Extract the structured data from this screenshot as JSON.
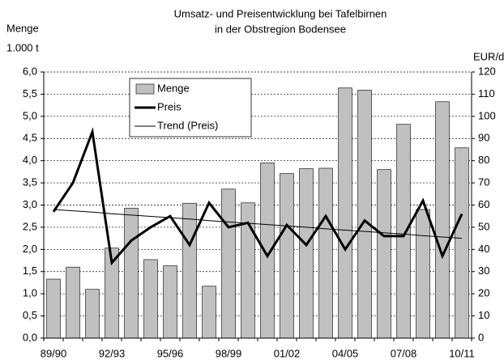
{
  "chart_data": {
    "type": "bar-line",
    "title": [
      "Umsatz- und Preisentwicklung bei Tafelbirnen",
      "in der Obstregion Bodensee"
    ],
    "y_label": [
      "Menge",
      "1.000 t"
    ],
    "y2_label": "EUR/dt",
    "categories": [
      "89/90",
      null,
      null,
      "92/93",
      null,
      null,
      "95/96",
      null,
      null,
      "98/99",
      null,
      null,
      "01/02",
      null,
      null,
      "04/05",
      null,
      null,
      "07/08",
      null,
      null,
      "10/11"
    ],
    "series": [
      {
        "name": "Menge",
        "type": "bar",
        "color": "#c0c0c0",
        "values": [
          1.33,
          1.6,
          1.1,
          2.03,
          2.93,
          1.77,
          1.63,
          3.04,
          1.17,
          3.36,
          3.05,
          3.95,
          3.71,
          3.82,
          3.83,
          5.64,
          5.59,
          3.8,
          4.82,
          2.9,
          5.33,
          4.29
        ]
      },
      {
        "name": "Preis",
        "type": "line",
        "axis": "y2",
        "color": "#000000",
        "width": 3,
        "values": [
          57,
          70,
          93,
          34,
          44,
          50,
          55,
          42,
          61,
          50,
          52,
          37,
          51,
          42,
          55,
          40,
          53,
          46,
          46,
          62,
          37,
          56
        ]
      },
      {
        "name": "Trend (Preis)",
        "type": "line",
        "axis": "y2",
        "color": "#000000",
        "width": 1,
        "values": [
          58,
          57.4,
          56.8,
          56.1,
          55.5,
          54.9,
          54.3,
          53.7,
          53.0,
          52.4,
          51.8,
          51.2,
          50.6,
          50.0,
          49.3,
          48.7,
          48.1,
          47.5,
          46.9,
          46.2,
          45.6,
          45
        ]
      }
    ],
    "ylim": [
      0,
      6
    ],
    "yticks": [
      {
        "value": 0,
        "label": "0,0"
      },
      {
        "value": 0.5,
        "label": "0,5"
      },
      {
        "value": 1,
        "label": "1,0"
      },
      {
        "value": 1.5,
        "label": "1,5"
      },
      {
        "value": 2,
        "label": "2,0"
      },
      {
        "value": 2.5,
        "label": "2,5"
      },
      {
        "value": 3,
        "label": "3,0"
      },
      {
        "value": 3.5,
        "label": "3,5"
      },
      {
        "value": 4,
        "label": "4,0"
      },
      {
        "value": 4.5,
        "label": "4,5"
      },
      {
        "value": 5,
        "label": "5,0"
      },
      {
        "value": 5.5,
        "label": "5,5"
      },
      {
        "value": 6,
        "label": "6,0"
      }
    ],
    "y2lim": [
      0,
      120
    ],
    "y2ticks": [
      0,
      10,
      20,
      30,
      40,
      50,
      60,
      70,
      80,
      90,
      100,
      110,
      120
    ],
    "grid": true,
    "legend": "top-left"
  }
}
